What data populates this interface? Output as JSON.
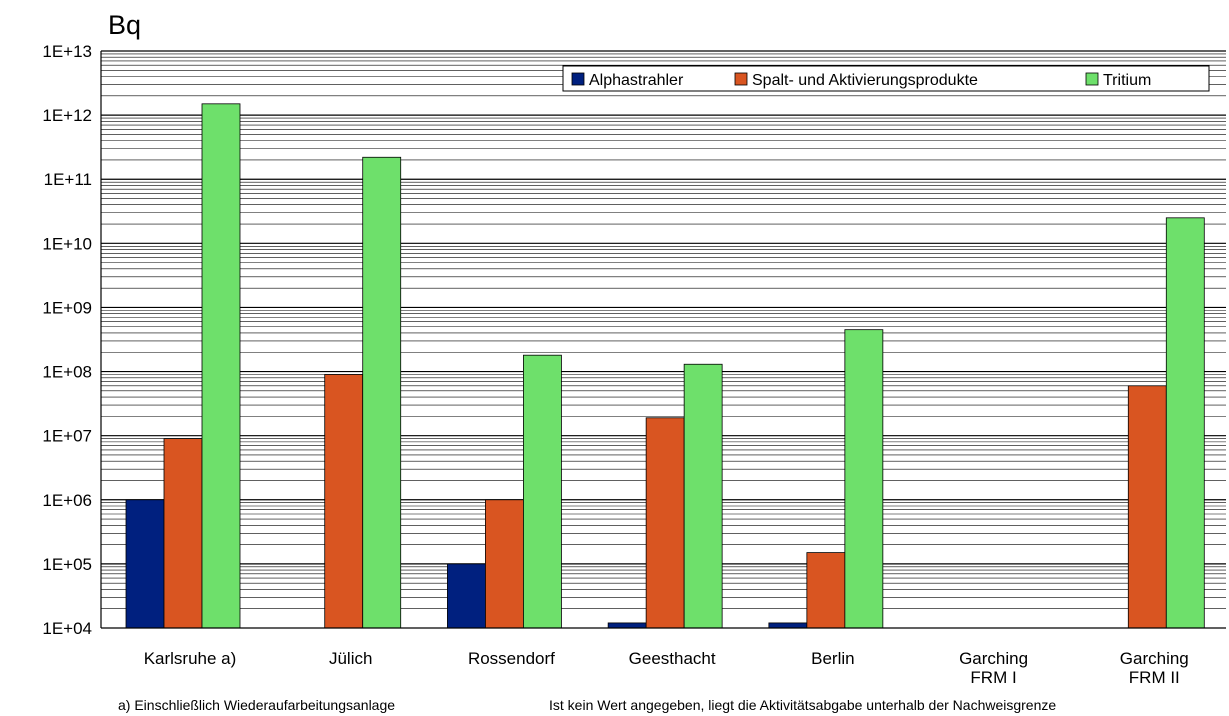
{
  "chart_data": {
    "type": "bar",
    "ylabel": "Bq",
    "yscale": "log",
    "ylim": [
      10000,
      10000000000000
    ],
    "ytick_labels": [
      "1E+04",
      "1E+05",
      "1E+06",
      "1E+07",
      "1E+08",
      "1E+09",
      "1E+10",
      "1E+11",
      "1E+12",
      "1E+13"
    ],
    "categories": [
      [
        "Karlsruhe a)"
      ],
      [
        "Jülich"
      ],
      [
        "Rossendorf"
      ],
      [
        "Geesthacht"
      ],
      [
        "Berlin"
      ],
      [
        "Garching",
        "FRM I"
      ],
      [
        "Garching",
        "FRM II"
      ]
    ],
    "series": [
      {
        "name": "Alphastrahler",
        "color": "#00207f",
        "values": [
          1000000,
          null,
          100000,
          12000,
          12000,
          null,
          null
        ]
      },
      {
        "name": "Spalt- und Aktivierungsprodukte",
        "color": "#d95521",
        "values": [
          9000000,
          90000000,
          1000000,
          19000000,
          150000,
          null,
          60000000
        ]
      },
      {
        "name": "Tritium",
        "color": "#6ee06b",
        "values": [
          1500000000000,
          220000000000,
          180000000,
          130000000,
          450000000,
          null,
          25000000000
        ]
      }
    ],
    "grid": true,
    "legend_position": "top-right"
  },
  "notes": {
    "left": "a) Einschließlich Wiederaufarbeitungsanlage",
    "right": "Ist kein Wert angegeben, liegt die Aktivitätsabgabe unterhalb der Nachweisgrenze"
  }
}
